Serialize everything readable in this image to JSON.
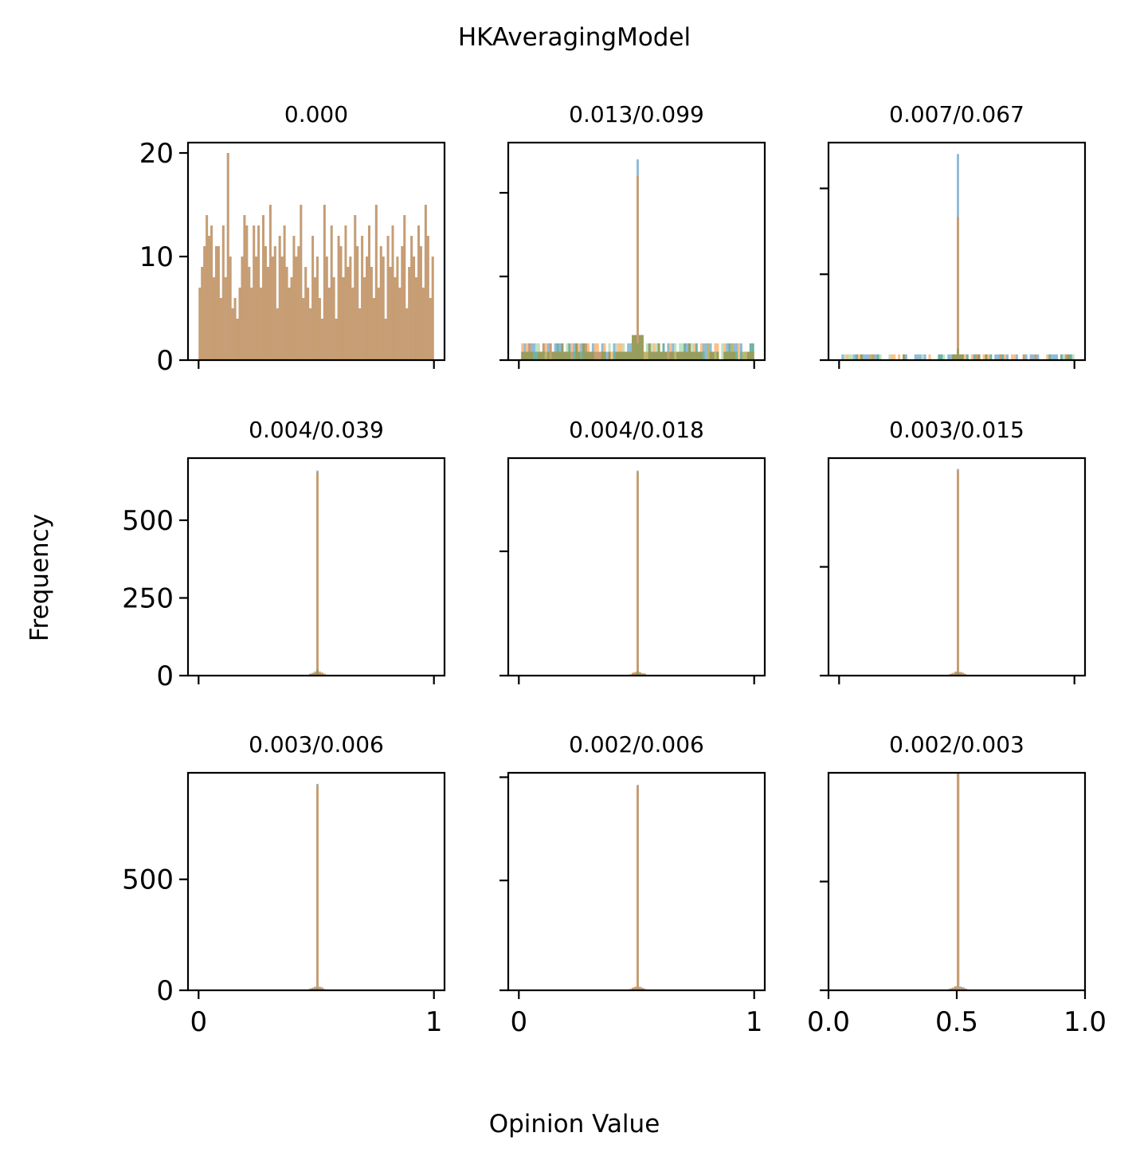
{
  "figure": {
    "title": "HKAveragingModel",
    "xlabel": "Opinion Value",
    "ylabel": "Frequency"
  },
  "chart_data": [
    {
      "type": "bar",
      "title": "0.000",
      "xlim": [
        -0.045,
        1.045
      ],
      "ylim": [
        0,
        21
      ],
      "yticks": [
        0,
        10,
        20
      ],
      "xticks": [
        0,
        1
      ],
      "show_yticklabels": true,
      "show_xticklabels": false,
      "bins": 100,
      "peak_bin": 50,
      "series": [
        {
          "name": "",
          "color": "#1f77b4",
          "alpha": 0.5,
          "values": [
            7,
            9,
            11,
            14,
            12,
            13,
            8,
            11,
            11,
            6,
            13,
            8,
            20,
            10,
            5,
            6,
            4,
            7,
            10,
            14,
            13,
            9,
            7,
            13,
            10,
            13,
            7,
            14,
            11,
            9,
            15,
            10,
            11,
            5,
            12,
            10,
            13,
            9,
            7,
            8,
            12,
            10,
            11,
            15,
            6,
            9,
            7,
            5,
            12,
            8,
            10,
            6,
            4,
            15,
            10,
            7,
            13,
            8,
            4,
            12,
            11,
            8,
            13,
            9,
            10,
            7,
            14,
            11,
            5,
            12,
            8,
            10,
            13,
            9,
            6,
            15,
            7,
            11,
            10,
            4,
            12,
            9,
            13,
            8,
            10,
            7,
            11,
            14,
            5,
            9,
            12,
            10,
            8,
            13,
            11,
            7,
            15,
            12,
            6,
            10
          ]
        },
        {
          "name": "",
          "color": "#ff7f0e",
          "alpha": 0.5,
          "values": [
            7,
            9,
            11,
            14,
            12,
            13,
            8,
            11,
            11,
            6,
            13,
            8,
            20,
            10,
            5,
            6,
            4,
            7,
            10,
            14,
            13,
            9,
            7,
            13,
            10,
            13,
            7,
            14,
            11,
            9,
            15,
            10,
            11,
            5,
            12,
            10,
            13,
            9,
            7,
            8,
            12,
            10,
            11,
            15,
            6,
            9,
            7,
            5,
            12,
            8,
            10,
            6,
            4,
            15,
            10,
            7,
            13,
            8,
            4,
            12,
            11,
            8,
            13,
            9,
            10,
            7,
            14,
            11,
            5,
            12,
            8,
            10,
            13,
            9,
            6,
            15,
            7,
            11,
            10,
            4,
            12,
            9,
            13,
            8,
            10,
            7,
            11,
            14,
            5,
            9,
            12,
            10,
            8,
            13,
            11,
            7,
            15,
            12,
            6,
            10
          ]
        }
      ]
    },
    {
      "type": "bar",
      "title": "0.013/0.099",
      "xlim": [
        -0.045,
        1.045
      ],
      "ylim": [
        0,
        26
      ],
      "yticks": [
        0,
        10,
        20
      ],
      "xticks": [
        0,
        1
      ],
      "show_yticklabels": false,
      "show_xticklabels": false,
      "bins": 100,
      "peak_bin": 50,
      "series": [
        {
          "name": "",
          "color": "#1f77b4",
          "alpha": 0.5,
          "peak": 24,
          "background": 1
        },
        {
          "name": "",
          "color": "#ff7f0e",
          "alpha": 0.5,
          "peak": 22,
          "background": 1
        },
        {
          "name": "",
          "color": "#2ca02c",
          "alpha": 0.3,
          "peak": 2,
          "background": 1
        }
      ]
    },
    {
      "type": "bar",
      "title": "0.007/0.067",
      "xlim": [
        -0.045,
        1.045
      ],
      "ylim": [
        0,
        38
      ],
      "yticks": [
        0,
        15,
        30
      ],
      "xticks": [
        0,
        1
      ],
      "show_yticklabels": false,
      "show_xticklabels": false,
      "bins": 100,
      "peak_bin": 50,
      "series": [
        {
          "name": "",
          "color": "#1f77b4",
          "alpha": 0.5,
          "peak": 36,
          "background": 0.3
        },
        {
          "name": "",
          "color": "#ff7f0e",
          "alpha": 0.5,
          "peak": 25,
          "background": 0.3
        },
        {
          "name": "",
          "color": "#2ca02c",
          "alpha": 0.3,
          "peak": 2,
          "background": 0.3
        }
      ]
    },
    {
      "type": "bar",
      "title": "0.004/0.039",
      "xlim": [
        -0.045,
        1.045
      ],
      "ylim": [
        0,
        700
      ],
      "yticks": [
        0,
        250,
        500
      ],
      "xticks": [
        0,
        1
      ],
      "show_yticklabels": true,
      "show_xticklabels": false,
      "bins": 100,
      "peak_bin": 50,
      "series": [
        {
          "name": "",
          "color": "#1f77b4",
          "alpha": 0.5,
          "peak": 660,
          "background": 0
        },
        {
          "name": "",
          "color": "#ff7f0e",
          "alpha": 0.5,
          "peak": 655,
          "background": 0
        },
        {
          "name": "",
          "color": "#2ca02c",
          "alpha": 0.3,
          "peak": 20,
          "background": 0
        }
      ]
    },
    {
      "type": "bar",
      "title": "0.004/0.018",
      "xlim": [
        -0.045,
        1.045
      ],
      "ylim": [
        0,
        700
      ],
      "yticks": [
        0,
        400
      ],
      "xticks": [
        0,
        1
      ],
      "show_yticklabels": false,
      "show_xticklabels": false,
      "bins": 100,
      "peak_bin": 50,
      "series": [
        {
          "name": "",
          "color": "#1f77b4",
          "alpha": 0.5,
          "peak": 660,
          "background": 0
        },
        {
          "name": "",
          "color": "#ff7f0e",
          "alpha": 0.5,
          "peak": 655,
          "background": 0
        },
        {
          "name": "",
          "color": "#2ca02c",
          "alpha": 0.3,
          "peak": 15,
          "background": 0
        }
      ]
    },
    {
      "type": "bar",
      "title": "0.003/0.015",
      "xlim": [
        -0.045,
        1.045
      ],
      "ylim": [
        0,
        700
      ],
      "yticks": [
        0,
        350
      ],
      "xticks": [
        0,
        1
      ],
      "show_yticklabels": false,
      "show_xticklabels": false,
      "bins": 100,
      "peak_bin": 50,
      "series": [
        {
          "name": "",
          "color": "#1f77b4",
          "alpha": 0.5,
          "peak": 665,
          "background": 0
        },
        {
          "name": "",
          "color": "#ff7f0e",
          "alpha": 0.5,
          "peak": 660,
          "background": 0
        },
        {
          "name": "",
          "color": "#2ca02c",
          "alpha": 0.3,
          "peak": 10,
          "background": 0
        }
      ]
    },
    {
      "type": "bar",
      "title": "0.003/0.006",
      "xlim": [
        -0.045,
        1.045
      ],
      "ylim": [
        0,
        980
      ],
      "yticks": [
        0,
        500
      ],
      "xticks": [
        0,
        1
      ],
      "xticklabels": [
        "0",
        "1"
      ],
      "show_yticklabels": true,
      "show_xticklabels": true,
      "bins": 100,
      "peak_bin": 50,
      "series": [
        {
          "name": "",
          "color": "#1f77b4",
          "alpha": 0.5,
          "peak": 930,
          "background": 0
        },
        {
          "name": "",
          "color": "#ff7f0e",
          "alpha": 0.5,
          "peak": 925,
          "background": 0
        },
        {
          "name": "",
          "color": "#2ca02c",
          "alpha": 0.3,
          "peak": 8,
          "background": 0
        }
      ]
    },
    {
      "type": "bar",
      "title": "0.002/0.006",
      "xlim": [
        -0.045,
        1.045
      ],
      "ylim": [
        0,
        990
      ],
      "yticks": [
        0,
        500,
        970
      ],
      "xticks": [
        0,
        1
      ],
      "xticklabels": [
        "0",
        "1"
      ],
      "show_yticklabels": false,
      "show_xticklabels": true,
      "bins": 100,
      "peak_bin": 50,
      "series": [
        {
          "name": "",
          "color": "#1f77b4",
          "alpha": 0.5,
          "peak": 935,
          "background": 0
        },
        {
          "name": "",
          "color": "#ff7f0e",
          "alpha": 0.5,
          "peak": 930,
          "background": 0
        },
        {
          "name": "",
          "color": "#2ca02c",
          "alpha": 0.3,
          "peak": 3,
          "background": 0
        }
      ]
    },
    {
      "type": "bar",
      "title": "0.002/0.003",
      "xlim": [
        0.0,
        1.0
      ],
      "ylim": [
        0,
        1000
      ],
      "yticks": [
        0,
        500
      ],
      "xticks": [
        0.0,
        0.5,
        1.0
      ],
      "xticklabels": [
        "0.0",
        "0.5",
        "1.0"
      ],
      "show_yticklabels": false,
      "show_xticklabels": true,
      "bins": 100,
      "peak_bin": 50,
      "series": [
        {
          "name": "",
          "color": "#1f77b4",
          "alpha": 0.5,
          "peak": 1000,
          "background": 0
        },
        {
          "name": "",
          "color": "#ff7f0e",
          "alpha": 0.5,
          "peak": 995,
          "background": 0
        }
      ]
    }
  ]
}
